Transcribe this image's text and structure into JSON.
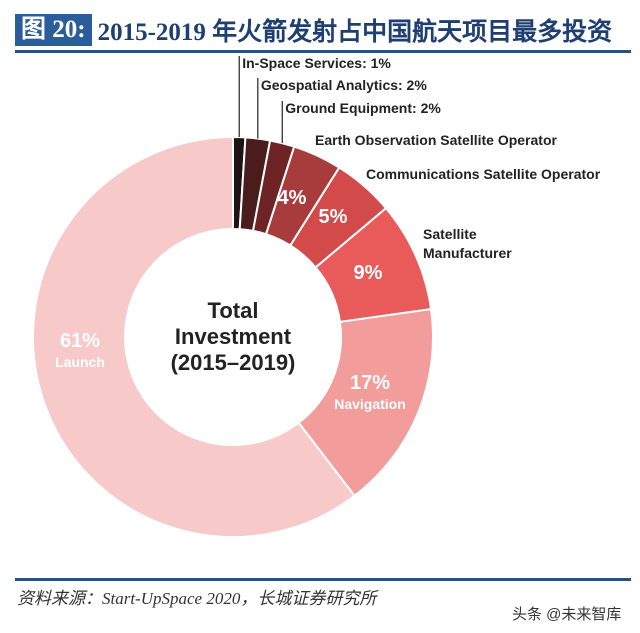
{
  "header": {
    "figure_number": "图 20:",
    "title": "2015-2019 年火箭发射占中国航天项目最多投资"
  },
  "chart_data": {
    "type": "pie",
    "donut": true,
    "center_label": [
      "Total",
      "Investment",
      "(2015–2019)"
    ],
    "start": "12 o'clock, clockwise",
    "slices": [
      {
        "label": "In-Space Services",
        "value": 1,
        "display": "In-Space Services: 1%",
        "color": "#1e1414"
      },
      {
        "label": "Geospatial Analytics",
        "value": 2,
        "display": "Geospatial Analytics: 2%",
        "color": "#4b1c1c"
      },
      {
        "label": "Ground Equipment",
        "value": 2,
        "display": "Ground Equipment: 2%",
        "color": "#6e2424"
      },
      {
        "label": "Earth Observation Satellite Operator",
        "value": 4,
        "display": "4%",
        "color": "#a83c3c"
      },
      {
        "label": "Communications Satellite Operator",
        "value": 5,
        "display": "5%",
        "color": "#d24a4a"
      },
      {
        "label": "Satellite Manufacturer",
        "value": 9,
        "display": "9%",
        "color": "#e95a5a"
      },
      {
        "label": "Navigation",
        "value": 17,
        "display": "17%",
        "color": "#f29c9c"
      },
      {
        "label": "Launch",
        "value": 61,
        "display": "61%",
        "color": "#f8c9c9"
      }
    ]
  },
  "footer": {
    "source": "资料来源：Start-UpSpace 2020，长城证券研究所",
    "watermark": "头条 @未来智库"
  }
}
